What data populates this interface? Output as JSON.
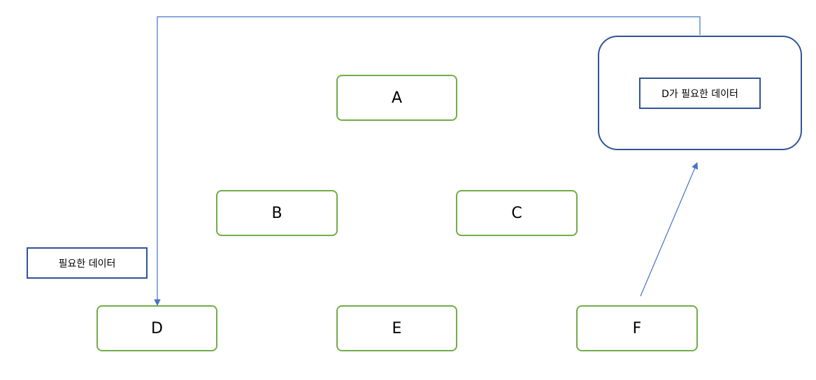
{
  "diagram": {
    "nodes": {
      "a": "A",
      "b": "B",
      "c": "C",
      "d": "D",
      "e": "E",
      "f": "F"
    },
    "data_store": {
      "label": "D가 필요한 데이터"
    },
    "needed_data": {
      "label": "필요한 데이터"
    },
    "colors": {
      "node_border": "#70ad47",
      "store_border": "#2f5496",
      "arrow": "#4472c4"
    }
  }
}
